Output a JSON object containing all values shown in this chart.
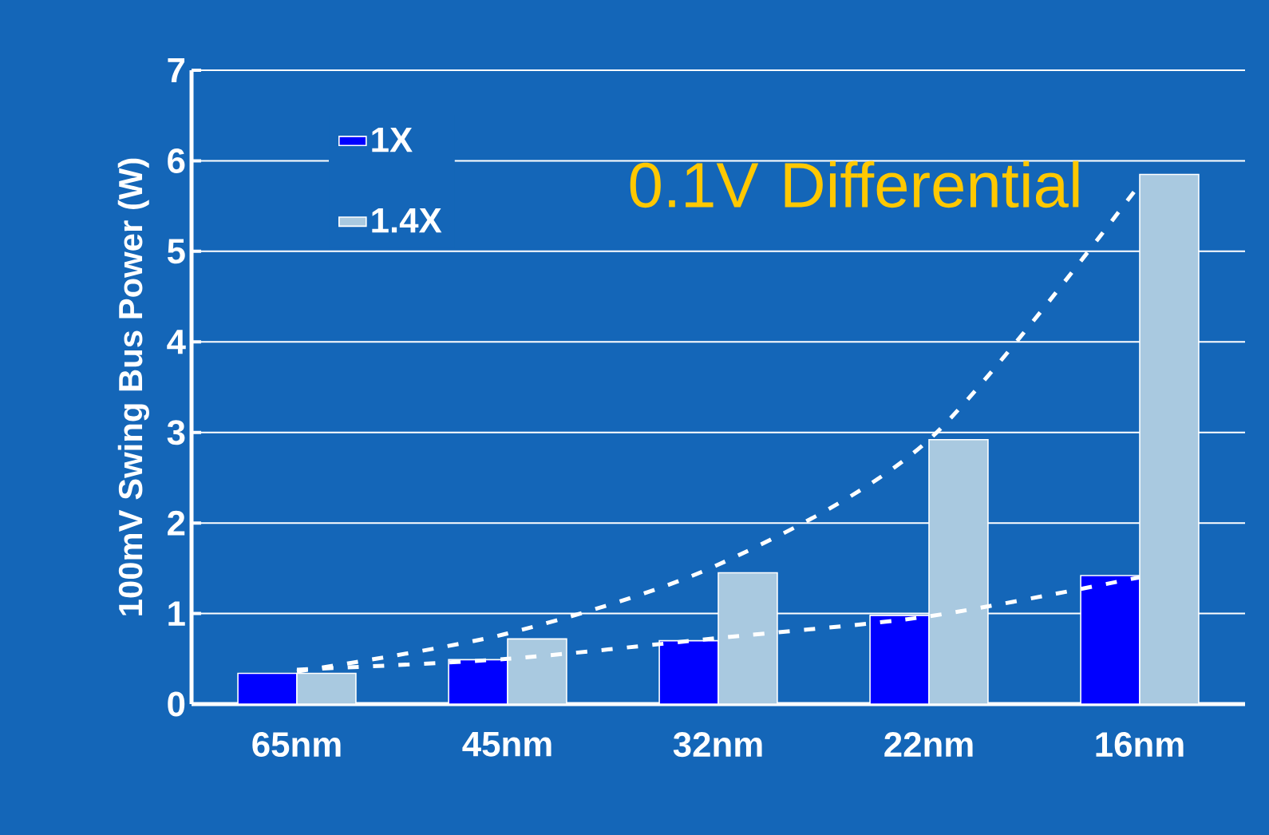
{
  "chart_data": {
    "type": "bar",
    "ylabel": "100mV Swing Bus Power (W)",
    "categories": [
      "65nm",
      "45nm",
      "32nm",
      "22nm",
      "16nm"
    ],
    "series": [
      {
        "name": "1X",
        "color": "#0000ff",
        "values": [
          0.34,
          0.49,
          0.7,
          0.98,
          1.42
        ]
      },
      {
        "name": "1.4X",
        "color": "#a9c9e0",
        "values": [
          0.34,
          0.72,
          1.45,
          2.92,
          5.85
        ]
      },
      {
        "type": "line",
        "color": "#ffffff",
        "line_style": "dashed",
        "values": [
          0.38,
          0.5,
          0.73,
          0.97,
          1.4
        ]
      },
      {
        "type": "line",
        "color": "#ffffff",
        "line_style": "dashed",
        "values": [
          0.36,
          0.78,
          1.54,
          2.92,
          5.74
        ]
      }
    ],
    "ylim": [
      0,
      7
    ],
    "yticks": [
      0,
      1,
      2,
      3,
      4,
      5,
      6,
      7
    ],
    "grid": "y",
    "legend": "top left",
    "marker": "none",
    "annotations": [
      "0.1V Differential"
    ]
  }
}
